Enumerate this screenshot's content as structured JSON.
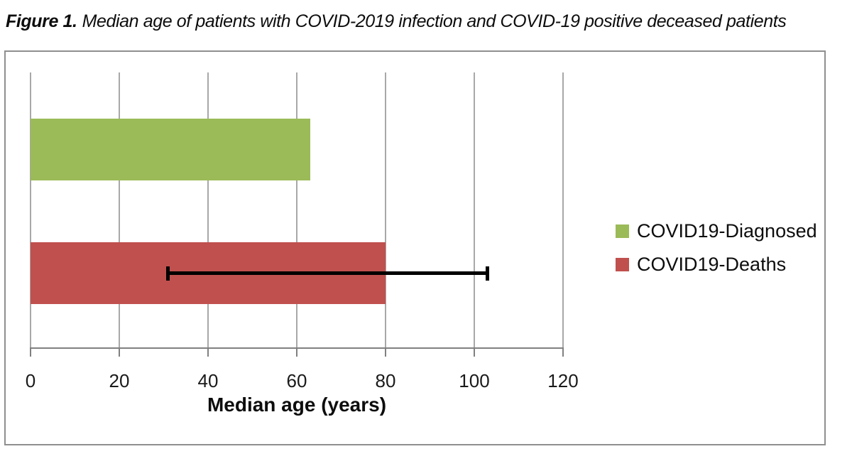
{
  "caption": {
    "label": "Figure 1.",
    "text": "Median age of patients with COVID-2019 infection and COVID-19 positive deceased patients"
  },
  "chart_data": {
    "type": "bar",
    "orientation": "horizontal",
    "title": "Figure 1. Median age of patients with COVID-2019 infection and COVID-19 positive deceased patients",
    "xlabel": "Median age (years)",
    "xlim": [
      0,
      120
    ],
    "xticks": [
      0,
      20,
      40,
      60,
      80,
      100,
      120
    ],
    "grid": true,
    "legend_position": "right-middle",
    "series": [
      {
        "name": "COVID19-Diagnosed",
        "value": 63,
        "color": "#9BBB59"
      },
      {
        "name": "COVID19-Deaths",
        "value": 80,
        "color": "#C0504D",
        "error_range": [
          31,
          103
        ]
      }
    ],
    "colors": {
      "gridline": "#A8A8A8",
      "axis": "#808080",
      "frame": "#8F8F8F",
      "error_bar": "#000000",
      "background": "#FFFFFF"
    }
  }
}
